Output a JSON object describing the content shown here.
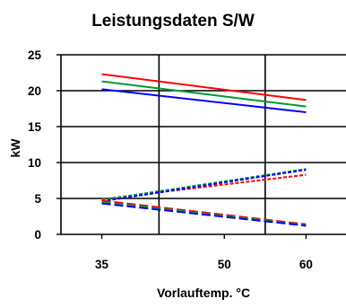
{
  "chart_data": {
    "type": "line",
    "title": "Leistungsdaten S/W",
    "xlabel": "Vorlauftemp. °C",
    "ylabel": "kW",
    "xlim": [
      30,
      65
    ],
    "ylim": [
      0,
      25
    ],
    "xticks": [
      35,
      50,
      60
    ],
    "xtick_labels": [
      "35",
      "50",
      "60"
    ],
    "yticks": [
      0,
      5,
      10,
      15,
      20,
      25
    ],
    "ytick_labels": [
      "0",
      "5",
      "10",
      "15",
      "20",
      "25"
    ],
    "grid": true,
    "legend": "none",
    "series": [
      {
        "color": "#ff0000",
        "style": "solid",
        "x": [
          35,
          60
        ],
        "y": [
          22.3,
          18.7
        ]
      },
      {
        "color": "#009933",
        "style": "solid",
        "x": [
          35,
          60
        ],
        "y": [
          21.3,
          17.8
        ]
      },
      {
        "color": "#0000ff",
        "style": "solid",
        "x": [
          35,
          60
        ],
        "y": [
          20.2,
          17.0
        ]
      },
      {
        "color": "#ff0000",
        "style": "dotted",
        "x": [
          35,
          60
        ],
        "y": [
          4.9,
          8.3
        ]
      },
      {
        "color": "#009933",
        "style": "dotted",
        "x": [
          35,
          60
        ],
        "y": [
          4.8,
          9.1
        ]
      },
      {
        "color": "#0000ff",
        "style": "dotted",
        "x": [
          35,
          60
        ],
        "y": [
          4.6,
          9.0
        ]
      },
      {
        "color": "#ff0000",
        "style": "dashed",
        "x": [
          35,
          60
        ],
        "y": [
          4.7,
          1.4
        ]
      },
      {
        "color": "#009933",
        "style": "dashed",
        "x": [
          35,
          60
        ],
        "y": [
          4.5,
          1.3
        ]
      },
      {
        "color": "#0000ff",
        "style": "dashed",
        "x": [
          35,
          60
        ],
        "y": [
          4.3,
          1.2
        ]
      }
    ]
  }
}
